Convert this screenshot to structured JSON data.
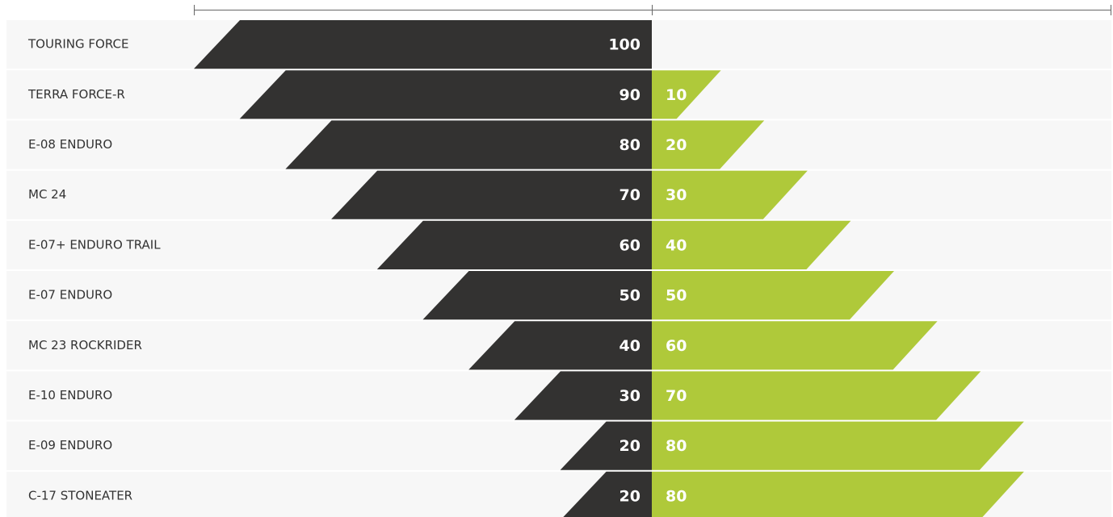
{
  "chart_data": {
    "type": "diverging-bar",
    "categories": [
      "TOURING FORCE",
      "TERRA FORCE-R",
      "E-08 ENDURO",
      "MC 24",
      "E-07+ ENDURO TRAIL",
      "E-07 ENDURO",
      "MC 23 ROCKRIDER",
      "E-10 ENDURO",
      "E-09 ENDURO",
      "C-17 STONEATER"
    ],
    "series": [
      {
        "color": "#333231",
        "values": [
          100,
          90,
          80,
          70,
          60,
          50,
          40,
          30,
          20,
          20
        ]
      },
      {
        "color": "#afc93a",
        "values": [
          null,
          10,
          20,
          30,
          40,
          50,
          60,
          70,
          80,
          80
        ]
      }
    ],
    "xlim": [
      0,
      100
    ]
  }
}
